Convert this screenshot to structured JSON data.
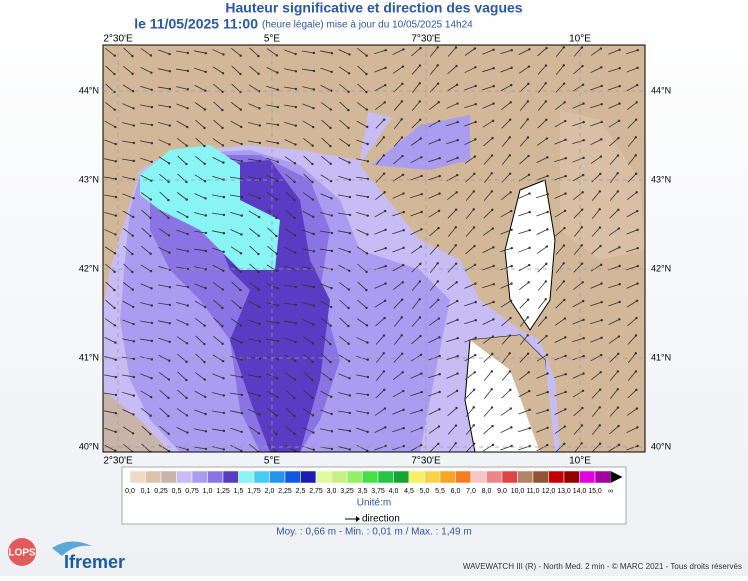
{
  "header": {
    "title": "Hauteur significative et direction des vagues",
    "date": "le 11/05/2025 11:00",
    "date_note": "(heure légale) mise à jour du 10/05/2025 14h24"
  },
  "map": {
    "lon_ticks": [
      {
        "value": 2.5,
        "label": "2°30'E"
      },
      {
        "value": 5,
        "label": "5°E"
      },
      {
        "value": 7.5,
        "label": "7°30'E"
      },
      {
        "value": 10,
        "label": "10°E"
      }
    ],
    "lat_ticks": [
      {
        "value": 44,
        "label": "44°N"
      },
      {
        "value": 43,
        "label": "43°N"
      },
      {
        "value": 42,
        "label": "42°N"
      },
      {
        "value": 41,
        "label": "41°N"
      },
      {
        "value": 40,
        "label": "40°N"
      }
    ]
  },
  "legend": {
    "labels": [
      "0,0",
      "0,1",
      "0,25",
      "0,5",
      "0,75",
      "1,0",
      "1,25",
      "1,5",
      "1,75",
      "2,0",
      "2,25",
      "2,5",
      "2,75",
      "3,0",
      "3,25",
      "3,5",
      "3,75",
      "4,0",
      "4,5",
      "5,0",
      "5,5",
      "6,0",
      "7,0",
      "8,0",
      "9,0",
      "10,0",
      "11,0",
      "12,0",
      "13,0",
      "14,0",
      "15,0",
      "∞"
    ],
    "colors": [
      "#eedac6",
      "#dcc2a8",
      "#c8b4a8",
      "#c8bcf4",
      "#aa9cf0",
      "#8a74e4",
      "#5a3cc4",
      "#88f4f4",
      "#44ccf4",
      "#2494f0",
      "#1458e0",
      "#1c1cb4",
      "#e4f8a4",
      "#c4f084",
      "#94f064",
      "#44e044",
      "#24c444",
      "#14a434",
      "#f8f064",
      "#f8d444",
      "#f8a424",
      "#f87c24",
      "#f8c4c4",
      "#f08484",
      "#e04444",
      "#b08464",
      "#905434",
      "#c40000",
      "#940000",
      "#e400e4",
      "#a400a4"
    ],
    "unit": "Unité:m",
    "direction": "direction",
    "stats": "Moy. : 0,66 m   -   Min. : 0,01 m / Max. : 1,49 m"
  },
  "footer": {
    "logo1": "LOPS",
    "logo2": "Ifremer",
    "credits": "WAVEWATCH III (R) - North Med. 2 min - © MARC 2021 - Tous droits réservés"
  }
}
